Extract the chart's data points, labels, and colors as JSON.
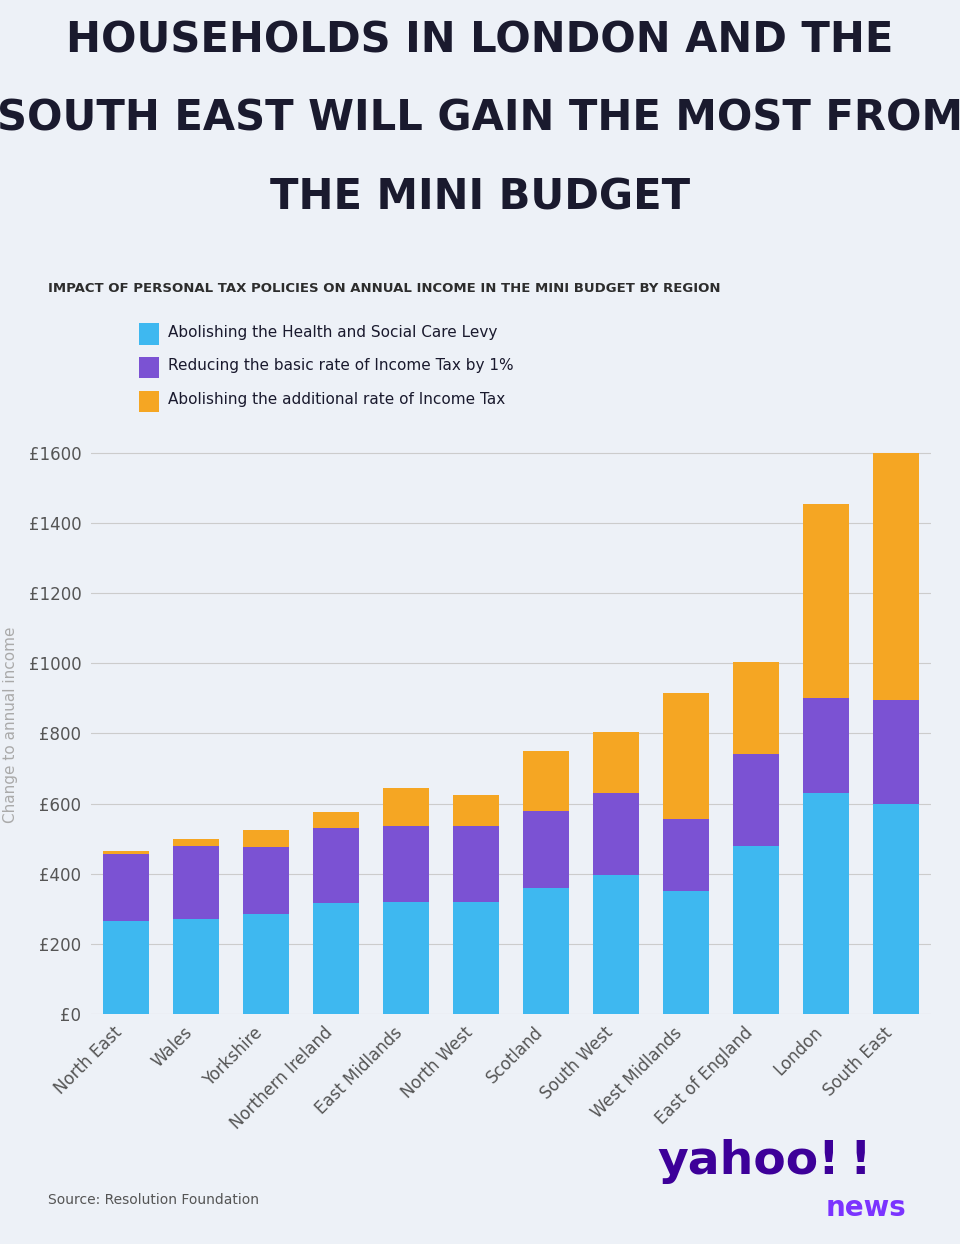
{
  "title_line1": "HOUSEHOLDS IN LONDON AND THE",
  "title_line2": "SOUTH EAST WILL GAIN THE MOST FROM",
  "title_line3": "THE MINI BUDGET",
  "subtitle": "IMPACT OF PERSONAL TAX POLICIES ON ANNUAL INCOME IN THE MINI BUDGET BY REGION",
  "categories": [
    "North East",
    "Wales",
    "Yorkshire",
    "Northern Ireland",
    "East Midlands",
    "North West",
    "Scotland",
    "South West",
    "West Midlands",
    "East of England",
    "London",
    "South East"
  ],
  "blue_values": [
    265,
    270,
    285,
    315,
    320,
    320,
    360,
    395,
    350,
    480,
    630,
    600
  ],
  "purple_values": [
    190,
    210,
    190,
    215,
    215,
    215,
    220,
    235,
    205,
    260,
    270,
    295
  ],
  "orange_values": [
    10,
    20,
    50,
    45,
    110,
    90,
    170,
    175,
    360,
    265,
    555,
    705
  ],
  "legend_labels": [
    "Abolishing the Health and Social Care Levy",
    "Reducing the basic rate of Income Tax by 1%",
    "Abolishing the additional rate of Income Tax"
  ],
  "bar_color_blue": "#3eb8f0",
  "bar_color_purple": "#7b52d3",
  "bar_color_orange": "#f5a623",
  "ylabel": "Change to annual income",
  "ylim": [
    0,
    1650
  ],
  "yticks": [
    0,
    200,
    400,
    600,
    800,
    1000,
    1200,
    1400,
    1600
  ],
  "ytick_labels": [
    "£0",
    "£200",
    "£400",
    "£600",
    "£800",
    "£1000",
    "£1200",
    "£1400",
    "£1600"
  ],
  "source_text": "Source: Resolution Foundation",
  "background_color": "#edf1f7",
  "title_color": "#1a1a2e",
  "subtitle_color": "#2d2d2d",
  "axis_label_color": "#aaaaaa",
  "tick_color": "#555555",
  "grid_color": "#cccccc",
  "yahoo_dark": "#3d0099",
  "yahoo_light": "#7b33ff"
}
